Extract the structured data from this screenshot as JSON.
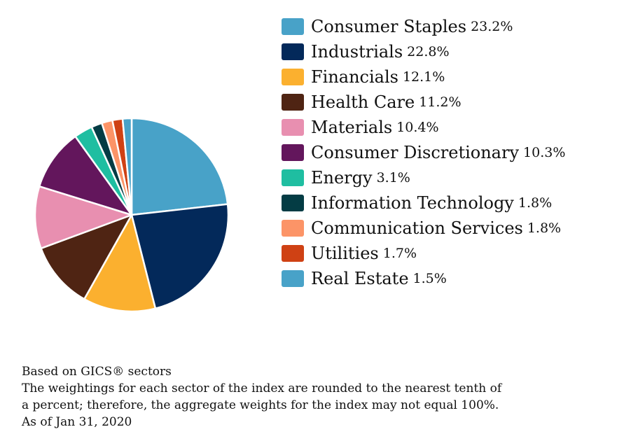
{
  "chart_data": {
    "type": "pie",
    "categories": [
      "Consumer Staples",
      "Industrials",
      "Financials",
      "Health Care",
      "Materials",
      "Consumer Discretionary",
      "Energy",
      "Information Technology",
      "Communication Services",
      "Utilities",
      "Real Estate"
    ],
    "values": [
      23.2,
      22.8,
      12.1,
      11.2,
      10.4,
      10.3,
      3.1,
      1.8,
      1.8,
      1.7,
      1.5
    ],
    "labels": [
      "23.2%",
      "22.8%",
      "12.1%",
      "11.2%",
      "10.4%",
      "10.3%",
      "3.1%",
      "1.8%",
      "1.8%",
      "1.7%",
      "1.5%"
    ],
    "colors": [
      "#48a2c8",
      "#03295a",
      "#fbb02f",
      "#4f2413",
      "#e88fb0",
      "#63165c",
      "#1fbea1",
      "#043c44",
      "#fc9467",
      "#cf4114",
      "#48a2c8"
    ],
    "start": "top",
    "direction": "clockwise",
    "legend_position": "right"
  },
  "notes": [
    "Based on GICS® sectors",
    "The weightings for each sector of the index are rounded to the nearest tenth of",
    "a percent; therefore, the aggregate weights for the index may not equal 100%.",
    "As of Jan 31, 2020"
  ]
}
